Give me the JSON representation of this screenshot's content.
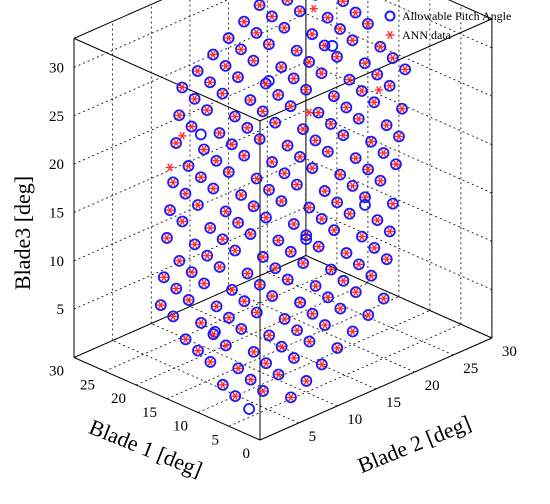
{
  "chart_data": {
    "type": "scatter",
    "xlabel": "Blade 1 [deg]",
    "ylabel": "Blade 2 [deg]",
    "zlabel": "Blade3 [deg]",
    "x_ticks": [
      "0",
      "5",
      "10",
      "15",
      "20",
      "25",
      "30"
    ],
    "y_ticks": [
      "5",
      "10",
      "15",
      "20",
      "25",
      "30"
    ],
    "z_ticks": [
      "5",
      "10",
      "15",
      "20",
      "25",
      "30"
    ],
    "xlim": [
      0,
      30
    ],
    "ylim": [
      0,
      30
    ],
    "zlim": [
      0,
      33
    ],
    "grid": true,
    "legend_position": "top-right",
    "grid_step": 2,
    "blade3_relation": "approximately (Blade 1 + Blade 2) / 2",
    "series": [
      {
        "name": "Allowable Pitch Angle",
        "marker": "open-circle",
        "color": "#1a1aff",
        "extra_points": [
          [
            3,
            1,
            2
          ],
          [
            11,
            3,
            7
          ],
          [
            6,
            10,
            9
          ],
          [
            10,
            14,
            13
          ],
          [
            8,
            20,
            15
          ],
          [
            26,
            22,
            22
          ],
          [
            27,
            14,
            19
          ],
          [
            22,
            27,
            25
          ]
        ]
      },
      {
        "name": "ANN data",
        "marker": "asterisk",
        "color": "#ff2a2a",
        "extra_points": [
          [
            30,
            14,
            18
          ],
          [
            27,
            10,
            17
          ],
          [
            25,
            27,
            28
          ],
          [
            17,
            20,
            22
          ],
          [
            12,
            25,
            24
          ]
        ]
      }
    ]
  }
}
